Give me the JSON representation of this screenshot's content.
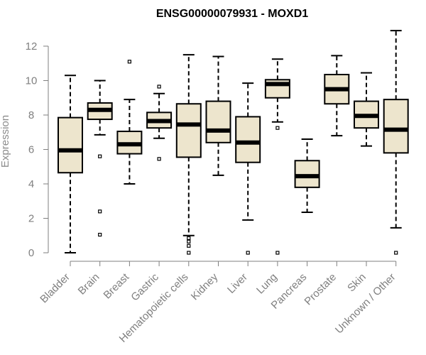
{
  "chart_data": {
    "type": "boxplot",
    "title": "ENSG00000079931 - MOXD1",
    "xlabel": "",
    "ylabel": "Expression",
    "ylim": [
      0,
      12.5
    ],
    "yticks": [
      0,
      2,
      4,
      6,
      8,
      10,
      12
    ],
    "box_fill": "#ede5cd",
    "box_stroke": "#000000",
    "categories": [
      "Bladder",
      "Brain",
      "Breast",
      "Gastric",
      "Hematopoietic cells",
      "Kidney",
      "Liver",
      "Lung",
      "Pancreas",
      "Prostate",
      "Skin",
      "Unknown / Other"
    ],
    "boxes": [
      {
        "name": "Bladder",
        "whisker_low": 0.0,
        "q1": 4.65,
        "median": 5.95,
        "q3": 7.85,
        "whisker_high": 10.3,
        "outliers": []
      },
      {
        "name": "Brain",
        "whisker_low": 6.85,
        "q1": 7.75,
        "median": 8.3,
        "q3": 8.7,
        "whisker_high": 10.0,
        "outliers": [
          5.6,
          2.4,
          1.05
        ]
      },
      {
        "name": "Breast",
        "whisker_low": 4.0,
        "q1": 5.75,
        "median": 6.3,
        "q3": 7.05,
        "whisker_high": 8.9,
        "outliers": [
          11.1
        ]
      },
      {
        "name": "Gastric",
        "whisker_low": 6.65,
        "q1": 7.25,
        "median": 7.65,
        "q3": 8.15,
        "whisker_high": 9.25,
        "outliers": [
          9.65,
          5.45
        ]
      },
      {
        "name": "Hematopoietic cells",
        "whisker_low": 1.0,
        "q1": 5.55,
        "median": 7.45,
        "q3": 8.65,
        "whisker_high": 11.5,
        "outliers": [
          0.85,
          0.65,
          0.4,
          0.0
        ]
      },
      {
        "name": "Kidney",
        "whisker_low": 4.5,
        "q1": 6.4,
        "median": 7.1,
        "q3": 8.8,
        "whisker_high": 11.4,
        "outliers": []
      },
      {
        "name": "Liver",
        "whisker_low": 1.9,
        "q1": 5.25,
        "median": 6.4,
        "q3": 7.9,
        "whisker_high": 9.85,
        "outliers": [
          0.0
        ]
      },
      {
        "name": "Lung",
        "whisker_low": 7.6,
        "q1": 9.0,
        "median": 9.8,
        "q3": 10.05,
        "whisker_high": 11.25,
        "outliers": [
          7.25,
          0.0
        ]
      },
      {
        "name": "Pancreas",
        "whisker_low": 2.35,
        "q1": 3.8,
        "median": 4.45,
        "q3": 5.35,
        "whisker_high": 6.6,
        "outliers": []
      },
      {
        "name": "Prostate",
        "whisker_low": 6.8,
        "q1": 8.65,
        "median": 9.5,
        "q3": 10.35,
        "whisker_high": 11.45,
        "outliers": []
      },
      {
        "name": "Skin",
        "whisker_low": 6.2,
        "q1": 7.25,
        "median": 7.95,
        "q3": 8.8,
        "whisker_high": 10.45,
        "outliers": []
      },
      {
        "name": "Unknown / Other",
        "whisker_low": 1.45,
        "q1": 5.8,
        "median": 7.15,
        "q3": 8.9,
        "whisker_high": 12.9,
        "outliers": [
          0.0
        ]
      }
    ]
  }
}
